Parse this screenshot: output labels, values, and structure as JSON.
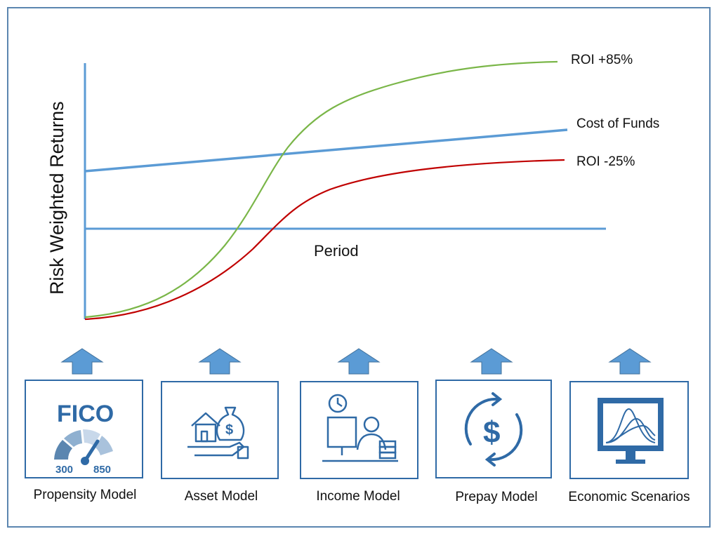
{
  "chart": {
    "ylabel": "Risk Weighted Returns",
    "xlabel": "Period",
    "series": [
      {
        "name": "ROI +85%",
        "color": "#7ab648"
      },
      {
        "name": "Cost of Funds",
        "color": "#5b9bd5"
      },
      {
        "name": "ROI -25%",
        "color": "#c00000"
      }
    ]
  },
  "models": [
    {
      "label": "Propensity Model",
      "icon": "fico-gauge-icon",
      "fico_text": "FICO",
      "score_low": "300",
      "score_high": "850"
    },
    {
      "label": "Asset Model",
      "icon": "house-money-hand-icon",
      "currency_symbol": "$"
    },
    {
      "label": "Income Model",
      "icon": "desk-worker-clock-icon"
    },
    {
      "label": "Prepay Model",
      "icon": "dollar-cycle-icon",
      "currency_symbol": "$"
    },
    {
      "label": "Economic Scenarios",
      "icon": "monitor-curves-icon"
    }
  ],
  "colors": {
    "frame": "#5b86b0",
    "arrow": "#5b9bd5",
    "icon": "#2f6aa6",
    "axis": "#5b9bd5"
  }
}
